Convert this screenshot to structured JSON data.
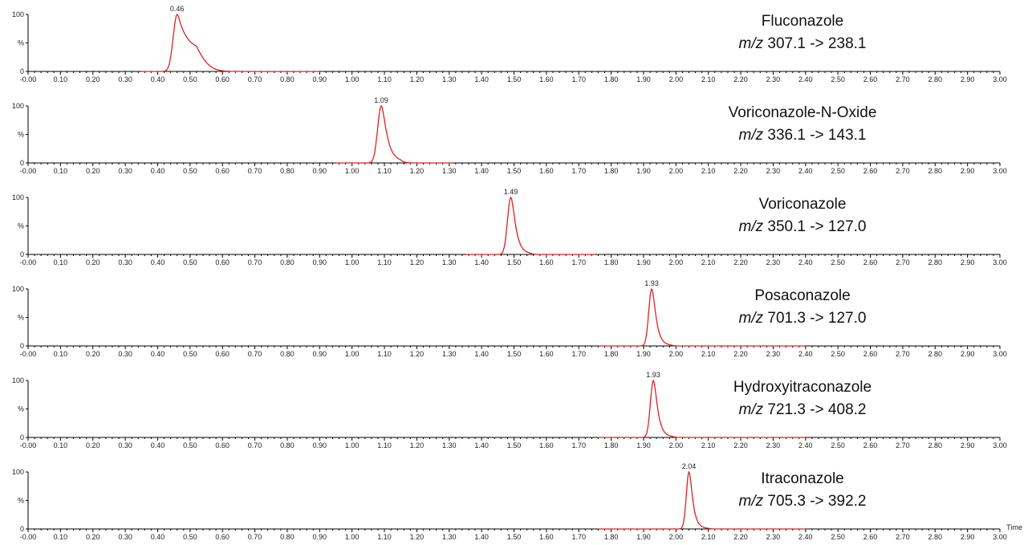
{
  "chart_data": [
    {
      "type": "line",
      "compound": "Fluconazole",
      "transition_prefix": "m/z",
      "transition_value": "307.1 -> 238.1",
      "peak_label": "0.46",
      "peak_rt": 0.46,
      "peak_width": 0.012,
      "tail": 0.035,
      "trace_range": [
        0.35,
        0.9
      ],
      "color": "#e02020",
      "xlim": [
        0.0,
        3.0
      ],
      "ylim": [
        0,
        100
      ],
      "ytick_labels": [
        "100",
        "%",
        "0"
      ]
    },
    {
      "type": "line",
      "compound": "Voriconazole-N-Oxide",
      "transition_prefix": "m/z",
      "transition_value": "336.1 -> 143.1",
      "peak_label": "1.09",
      "peak_rt": 1.09,
      "peak_width": 0.011,
      "tail": 0.014,
      "trace_range": [
        0.95,
        1.31
      ],
      "color": "#e02020",
      "xlim": [
        0.0,
        3.0
      ],
      "ylim": [
        0,
        100
      ],
      "ytick_labels": [
        "100",
        "%",
        "0"
      ]
    },
    {
      "type": "line",
      "compound": "Voriconazole",
      "transition_prefix": "m/z",
      "transition_value": "350.1 -> 127.0",
      "peak_label": "1.49",
      "peak_rt": 1.49,
      "peak_width": 0.01,
      "tail": 0.012,
      "trace_range": [
        1.35,
        1.75
      ],
      "color": "#e02020",
      "xlim": [
        0.0,
        3.0
      ],
      "ylim": [
        0,
        100
      ],
      "ytick_labels": [
        "100",
        "%",
        "0"
      ]
    },
    {
      "type": "line",
      "compound": "Posaconazole",
      "transition_prefix": "m/z",
      "transition_value": "701.3 -> 127.0",
      "peak_label": "1.93",
      "peak_rt": 1.925,
      "peak_width": 0.009,
      "tail": 0.012,
      "trace_range": [
        1.76,
        2.4
      ],
      "color": "#e02020",
      "xlim": [
        0.0,
        3.0
      ],
      "ylim": [
        0,
        100
      ],
      "ytick_labels": [
        "100",
        "%",
        "0"
      ]
    },
    {
      "type": "line",
      "compound": "Hydroxyitraconazole",
      "transition_prefix": "m/z",
      "transition_value": "721.3 -> 408.2",
      "peak_label": "1.93",
      "peak_rt": 1.93,
      "peak_width": 0.009,
      "tail": 0.012,
      "trace_range": [
        1.76,
        2.4
      ],
      "color": "#e02020",
      "xlim": [
        0.0,
        3.0
      ],
      "ylim": [
        0,
        100
      ],
      "ytick_labels": [
        "100",
        "%",
        "0"
      ]
    },
    {
      "type": "line",
      "compound": "Itraconazole",
      "transition_prefix": "m/z",
      "transition_value": "705.3 -> 392.2",
      "peak_label": "2.04",
      "peak_rt": 2.04,
      "peak_width": 0.008,
      "tail": 0.012,
      "trace_range": [
        1.76,
        2.4
      ],
      "color": "#e02020",
      "xlim": [
        0.0,
        3.0
      ],
      "ylim": [
        0,
        100
      ],
      "ytick_labels": [
        "100",
        "%",
        "0"
      ]
    }
  ],
  "x_tick_labels": [
    "-0.00",
    "0.10",
    "0.20",
    "0.30",
    "0.40",
    "0.50",
    "0.60",
    "0.70",
    "0.80",
    "0.90",
    "1.00",
    "1.10",
    "1.20",
    "1.30",
    "1.40",
    "1.50",
    "1.60",
    "1.70",
    "1.80",
    "1.90",
    "2.00",
    "2.10",
    "2.20",
    "2.30",
    "2.40",
    "2.50",
    "2.60",
    "2.70",
    "2.80",
    "2.90",
    "3.00"
  ],
  "xlabel": "Time",
  "axis_color": "#000000"
}
